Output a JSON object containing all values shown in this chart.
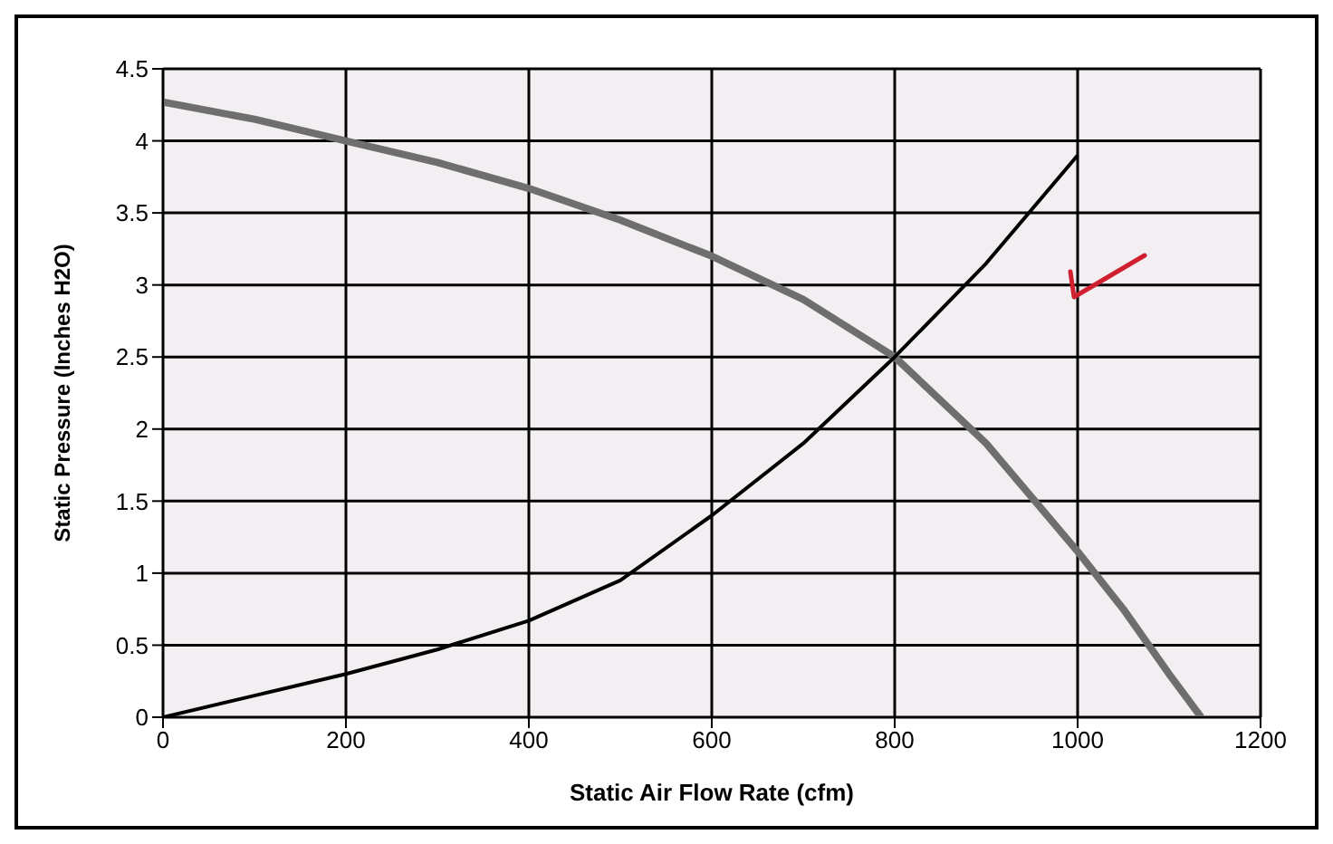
{
  "chart_data": {
    "type": "line",
    "xlabel": "Static Air Flow Rate (cfm)",
    "ylabel": "Static Pressure (Inches H2O)",
    "xlim": [
      0,
      1200
    ],
    "xticks": [
      0,
      200,
      400,
      600,
      800,
      1000,
      1200
    ],
    "ylim": [
      0,
      4.5
    ],
    "yticks": [
      0,
      0.5,
      1,
      1.5,
      2,
      2.5,
      3,
      3.5,
      4,
      4.5
    ],
    "grid": true,
    "marker": "none",
    "line_style": "solid",
    "series": [
      {
        "color": "#6e6e6e",
        "x": [
          0,
          100,
          200,
          300,
          400,
          500,
          600,
          700,
          800,
          900,
          1000,
          1050,
          1100,
          1135
        ],
        "values": [
          4.27,
          4.15,
          4.0,
          3.85,
          3.67,
          3.45,
          3.2,
          2.9,
          2.5,
          1.9,
          1.15,
          0.75,
          0.3,
          0
        ]
      },
      {
        "color": "#000000",
        "x": [
          0,
          100,
          200,
          300,
          400,
          500,
          600,
          700,
          800,
          900,
          1000
        ],
        "values": [
          0,
          0.15,
          0.3,
          0.47,
          0.67,
          0.95,
          1.4,
          1.9,
          2.5,
          3.15,
          3.9
        ]
      }
    ]
  }
}
